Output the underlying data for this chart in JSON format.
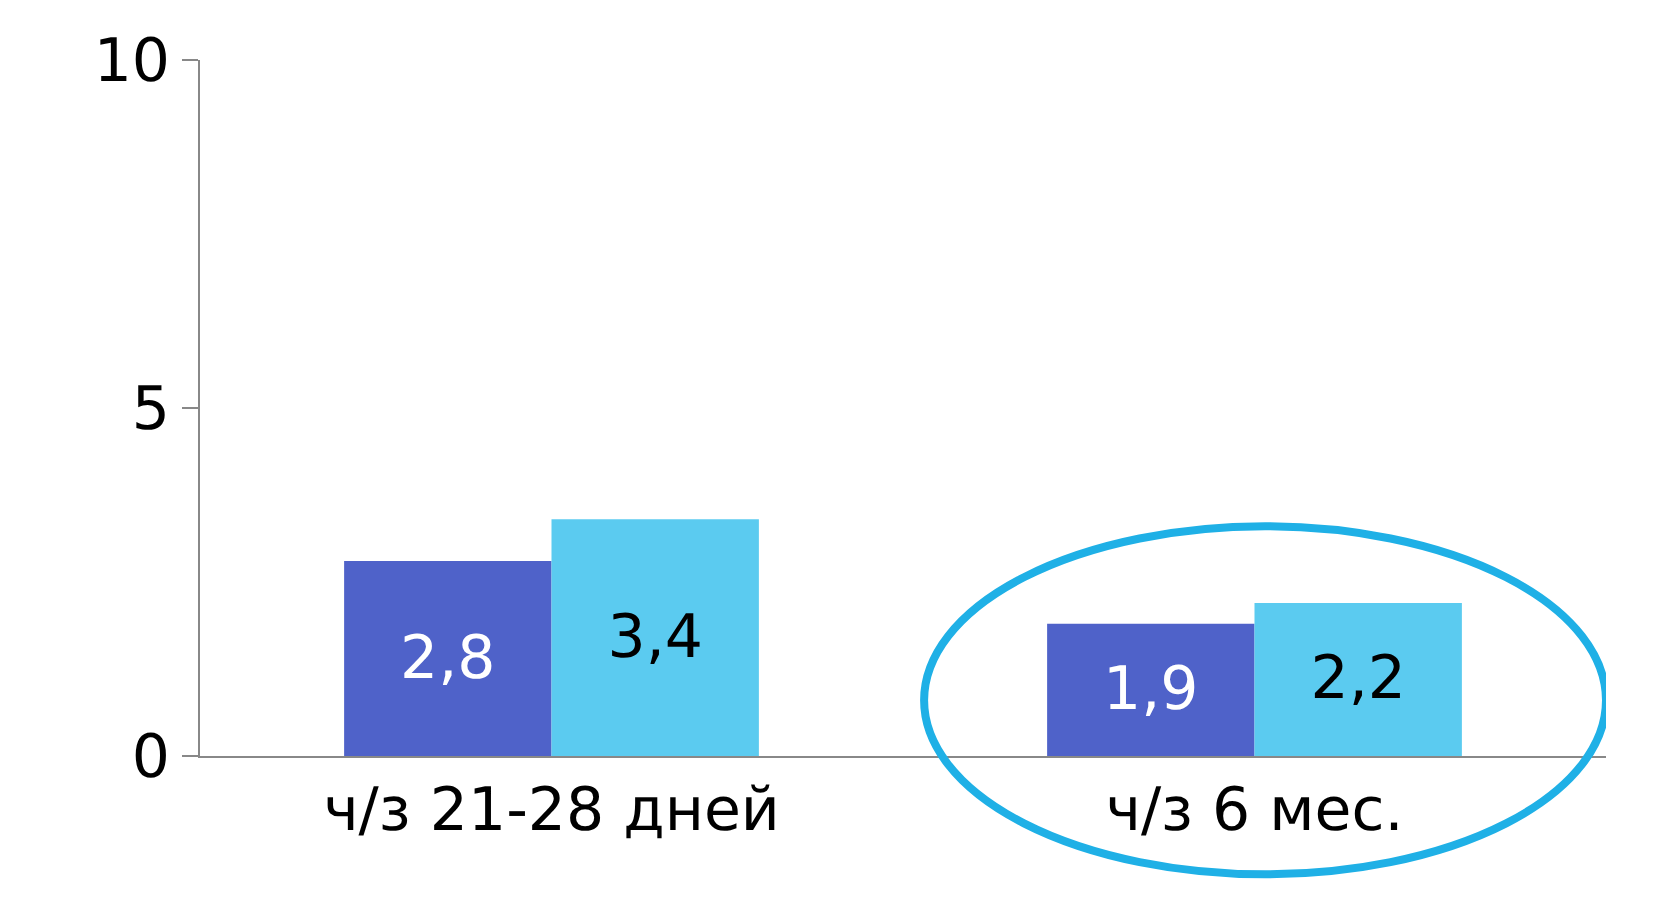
{
  "chart_data": {
    "type": "bar",
    "categories": [
      "ч/з 21-28 дней",
      "ч/з 6 мес."
    ],
    "series": [
      {
        "color": "#4f62c9",
        "values": [
          2.8,
          1.9
        ],
        "value_labels": [
          "2,8",
          "1,9"
        ]
      },
      {
        "color": "#5bcbf0",
        "values": [
          3.4,
          2.2
        ],
        "value_labels": [
          "3,4",
          "2,2"
        ]
      }
    ],
    "ylim": [
      0,
      10
    ],
    "yticks": [
      0,
      5,
      10
    ],
    "grid": false
  }
}
